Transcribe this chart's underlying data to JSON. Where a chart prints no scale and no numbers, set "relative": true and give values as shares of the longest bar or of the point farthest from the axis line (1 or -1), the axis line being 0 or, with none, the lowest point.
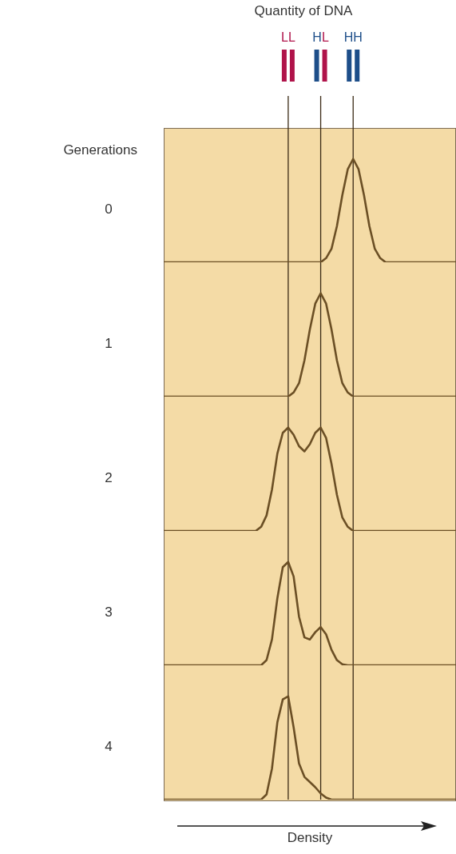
{
  "chart_data": [
    {
      "type": "line",
      "relative": true,
      "title": "Quantity of DNA",
      "ylabel": "0",
      "annotations": [
        "Generations"
      ],
      "color": "#6b4f25",
      "grid": "x",
      "tick_labels": "x",
      "categories": [
        null,
        null,
        null,
        null,
        null,
        null,
        null,
        null,
        null,
        null,
        null,
        null,
        null,
        null,
        null,
        null,
        null,
        null,
        null,
        null,
        null,
        null,
        null,
        "LL",
        null,
        null,
        null,
        null,
        null,
        "HL",
        null,
        null,
        null,
        null,
        null,
        "HH",
        null,
        null,
        null,
        null,
        null,
        null,
        null,
        null,
        null,
        null,
        null,
        null,
        null,
        null,
        null,
        null,
        null,
        null,
        null
      ],
      "values": [
        0,
        0,
        0,
        0,
        0,
        0,
        0,
        0,
        0,
        0,
        0,
        0,
        0,
        0,
        0,
        0,
        0,
        0,
        0,
        0,
        0,
        0,
        0,
        0,
        0,
        0,
        0,
        0,
        0,
        0,
        0.04,
        0.13,
        0.35,
        0.65,
        0.9,
        1,
        0.9,
        0.65,
        0.35,
        0.13,
        0.04,
        0,
        0,
        0,
        0,
        0,
        0,
        0,
        0,
        0,
        0,
        0,
        0,
        0,
        0
      ]
    },
    {
      "type": "line",
      "relative": true,
      "ylabel": "1",
      "color": "#6b4f25",
      "grid": "x",
      "tick_labels": false,
      "categories": [
        null,
        null,
        null,
        null,
        null,
        null,
        null,
        null,
        null,
        null,
        null,
        null,
        null,
        null,
        null,
        null,
        null,
        null,
        null,
        null,
        null,
        null,
        null,
        "LL",
        null,
        null,
        null,
        null,
        null,
        "HL",
        null,
        null,
        null,
        null,
        null,
        "HH",
        null,
        null,
        null,
        null,
        null,
        null,
        null,
        null,
        null,
        null,
        null,
        null,
        null,
        null,
        null,
        null,
        null,
        null,
        null
      ],
      "values": [
        0,
        0,
        0,
        0,
        0,
        0,
        0,
        0,
        0,
        0,
        0,
        0,
        0,
        0,
        0,
        0,
        0,
        0,
        0,
        0,
        0,
        0,
        0,
        0,
        0.04,
        0.13,
        0.35,
        0.65,
        0.9,
        1,
        0.9,
        0.65,
        0.35,
        0.13,
        0.04,
        0,
        0,
        0,
        0,
        0,
        0,
        0,
        0,
        0,
        0,
        0,
        0,
        0,
        0,
        0,
        0,
        0,
        0,
        0,
        0
      ]
    },
    {
      "type": "line",
      "relative": true,
      "ylabel": "2",
      "color": "#6b4f25",
      "grid": "x",
      "tick_labels": false,
      "categories": [
        null,
        null,
        null,
        null,
        null,
        null,
        null,
        null,
        null,
        null,
        null,
        null,
        null,
        null,
        null,
        null,
        null,
        null,
        null,
        null,
        null,
        null,
        null,
        "LL",
        null,
        null,
        null,
        null,
        null,
        "HL",
        null,
        null,
        null,
        null,
        null,
        "HH",
        null,
        null,
        null,
        null,
        null,
        null,
        null,
        null,
        null,
        null,
        null,
        null,
        null,
        null,
        null,
        null,
        null,
        null,
        null
      ],
      "values": [
        0,
        0,
        0,
        0,
        0,
        0,
        0,
        0,
        0,
        0,
        0,
        0,
        0,
        0,
        0,
        0,
        0,
        0,
        0.04,
        0.15,
        0.4,
        0.75,
        0.95,
        1,
        0.93,
        0.82,
        0.77,
        0.84,
        0.95,
        1,
        0.9,
        0.65,
        0.35,
        0.13,
        0.04,
        0,
        0,
        0,
        0,
        0,
        0,
        0,
        0,
        0,
        0,
        0,
        0,
        0,
        0,
        0,
        0,
        0,
        0,
        0,
        0
      ]
    },
    {
      "type": "line",
      "relative": true,
      "ylabel": "3",
      "color": "#6b4f25",
      "grid": "x",
      "tick_labels": false,
      "categories": [
        null,
        null,
        null,
        null,
        null,
        null,
        null,
        null,
        null,
        null,
        null,
        null,
        null,
        null,
        null,
        null,
        null,
        null,
        null,
        null,
        null,
        null,
        null,
        "LL",
        null,
        null,
        null,
        null,
        null,
        "HL",
        null,
        null,
        null,
        null,
        null,
        "HH",
        null,
        null,
        null,
        null,
        null,
        null,
        null,
        null,
        null,
        null,
        null,
        null,
        null,
        null,
        null,
        null,
        null,
        null,
        null
      ],
      "values": [
        0,
        0,
        0,
        0,
        0,
        0,
        0,
        0,
        0,
        0,
        0,
        0,
        0,
        0,
        0,
        0,
        0,
        0,
        0,
        0.05,
        0.25,
        0.65,
        0.95,
        1,
        0.86,
        0.47,
        0.27,
        0.25,
        0.32,
        0.37,
        0.3,
        0.15,
        0.05,
        0.01,
        0,
        0,
        0,
        0,
        0,
        0,
        0,
        0,
        0,
        0,
        0,
        0,
        0,
        0,
        0,
        0,
        0,
        0,
        0,
        0,
        0
      ]
    },
    {
      "type": "line",
      "relative": true,
      "ylabel": "4",
      "xlabel": "Density",
      "color": "#6b4f25",
      "grid": "x",
      "tick_labels": false,
      "categories": [
        null,
        null,
        null,
        null,
        null,
        null,
        null,
        null,
        null,
        null,
        null,
        null,
        null,
        null,
        null,
        null,
        null,
        null,
        null,
        null,
        null,
        null,
        null,
        "LL",
        null,
        null,
        null,
        null,
        null,
        "HL",
        null,
        null,
        null,
        null,
        null,
        "HH",
        null,
        null,
        null,
        null,
        null,
        null,
        null,
        null,
        null,
        null,
        null,
        null,
        null,
        null,
        null,
        null,
        null,
        null,
        null
      ],
      "values": [
        0,
        0,
        0,
        0,
        0,
        0,
        0,
        0,
        0,
        0,
        0,
        0,
        0,
        0,
        0,
        0,
        0,
        0,
        0,
        0.05,
        0.3,
        0.75,
        0.97,
        1,
        0.7,
        0.35,
        0.22,
        0.17,
        0.12,
        0.06,
        0.02,
        0,
        0,
        0,
        0,
        0,
        0,
        0,
        0,
        0,
        0,
        0,
        0,
        0,
        0,
        0,
        0,
        0,
        0,
        0,
        0,
        0,
        0,
        0,
        0
      ]
    }
  ]
}
